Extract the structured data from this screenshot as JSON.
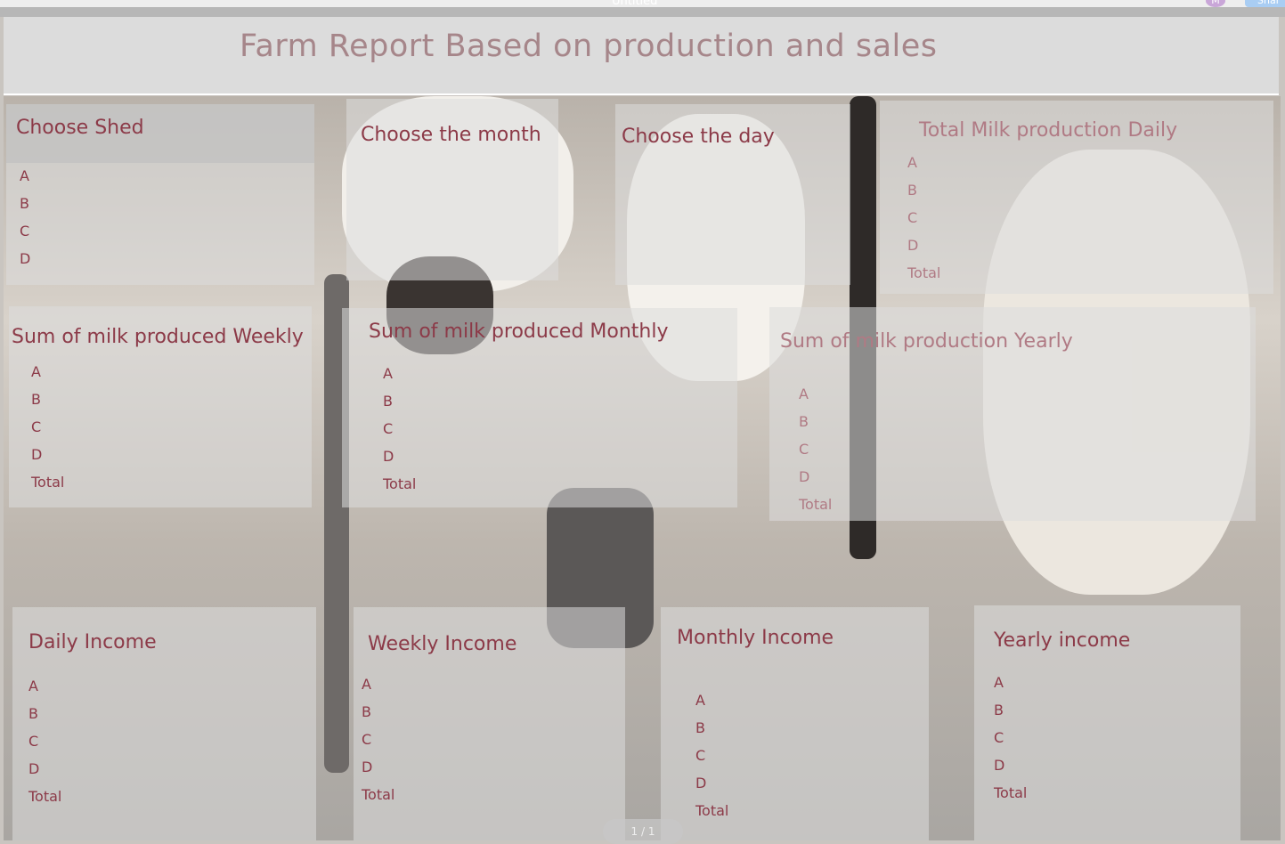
{
  "toolbar": {
    "doc_title": "Untitled",
    "avatar": "M",
    "share": "Shar"
  },
  "header": {
    "title": "Farm Report Based on production  and sales"
  },
  "panels": [
    {
      "title": "Choose Shed",
      "items": [
        "A",
        "B",
        "C",
        "D"
      ]
    },
    {
      "title": "Choose the month",
      "items": []
    },
    {
      "title": "Choose  the  day",
      "items": []
    },
    {
      "title": "Total Milk production Daily",
      "items": [
        "A",
        "B",
        "C",
        "D",
        "Total"
      ]
    },
    {
      "title": "Sum of milk produced Weekly",
      "items": [
        "A",
        "B",
        "C",
        "D",
        "Total"
      ]
    },
    {
      "title": "Sum of milk produced Monthly",
      "items": [
        "A",
        "B",
        "C",
        "D",
        "Total"
      ]
    },
    {
      "title": "Sum of milk production Yearly",
      "items": [
        "A",
        "B",
        "C",
        "D",
        "Total"
      ]
    },
    {
      "title": "Daily Income",
      "items": [
        "A",
        "B",
        "C",
        "D",
        "Total"
      ]
    },
    {
      "title": "Weekly Income",
      "items": [
        "A",
        "B",
        "C",
        "D",
        "Total"
      ]
    },
    {
      "title": "Monthly Income",
      "items": [
        "A",
        "B",
        "C",
        "D",
        "Total"
      ]
    },
    {
      "title": "Yearly income",
      "items": [
        "A",
        "B",
        "C",
        "D",
        "Total"
      ]
    }
  ],
  "pager": {
    "label": "1 / 1"
  }
}
